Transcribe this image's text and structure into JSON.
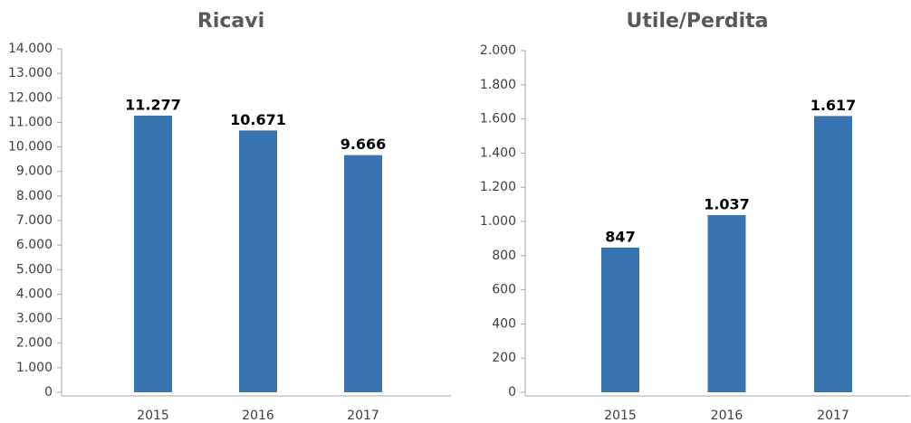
{
  "chart_data": [
    {
      "type": "bar",
      "title": "Ricavi",
      "categories": [
        "2015",
        "2016",
        "2017"
      ],
      "values": [
        11277,
        10671,
        9666
      ],
      "value_labels": [
        "11.277",
        "10.671",
        "9.666"
      ],
      "color": "#3674b2",
      "ylim": [
        0,
        14000
      ],
      "yticks": [
        0,
        {
          "value": 1000,
          "label": "1.000"
        },
        {
          "value": 2000,
          "label": "2.000"
        },
        {
          "value": 3000,
          "label": "3.000"
        },
        {
          "value": 4000,
          "label": "4.000"
        },
        {
          "value": 5000,
          "label": "5.000"
        },
        {
          "value": 6000,
          "label": "6.000"
        },
        {
          "value": 7000,
          "label": "7.000"
        },
        {
          "value": 8000,
          "label": "8.000"
        },
        {
          "value": 9000,
          "label": "9.000"
        },
        {
          "value": 10000,
          "label": "10.000"
        },
        {
          "value": 11000,
          "label": "11.000"
        },
        {
          "value": 12000,
          "label": "12.000"
        },
        {
          "value": 13000,
          "label": "13.000"
        },
        {
          "value": 14000,
          "label": "14.000"
        }
      ]
    },
    {
      "type": "bar",
      "title": "Utile/Perdita",
      "categories": [
        "2015",
        "2016",
        "2017"
      ],
      "values": [
        847,
        1037,
        1617
      ],
      "value_labels": [
        "847",
        "1.037",
        "1.617"
      ],
      "color": "#3674b2",
      "ylim": [
        0,
        2000
      ],
      "yticks": [
        0,
        200,
        400,
        600,
        800,
        {
          "value": 1000,
          "label": "1.000"
        },
        {
          "value": 1200,
          "label": "1.200"
        },
        {
          "value": 1400,
          "label": "1.400"
        },
        {
          "value": 1600,
          "label": "1.600"
        },
        {
          "value": 1800,
          "label": "1.800"
        },
        {
          "value": 2000,
          "label": "2.000"
        }
      ]
    }
  ]
}
